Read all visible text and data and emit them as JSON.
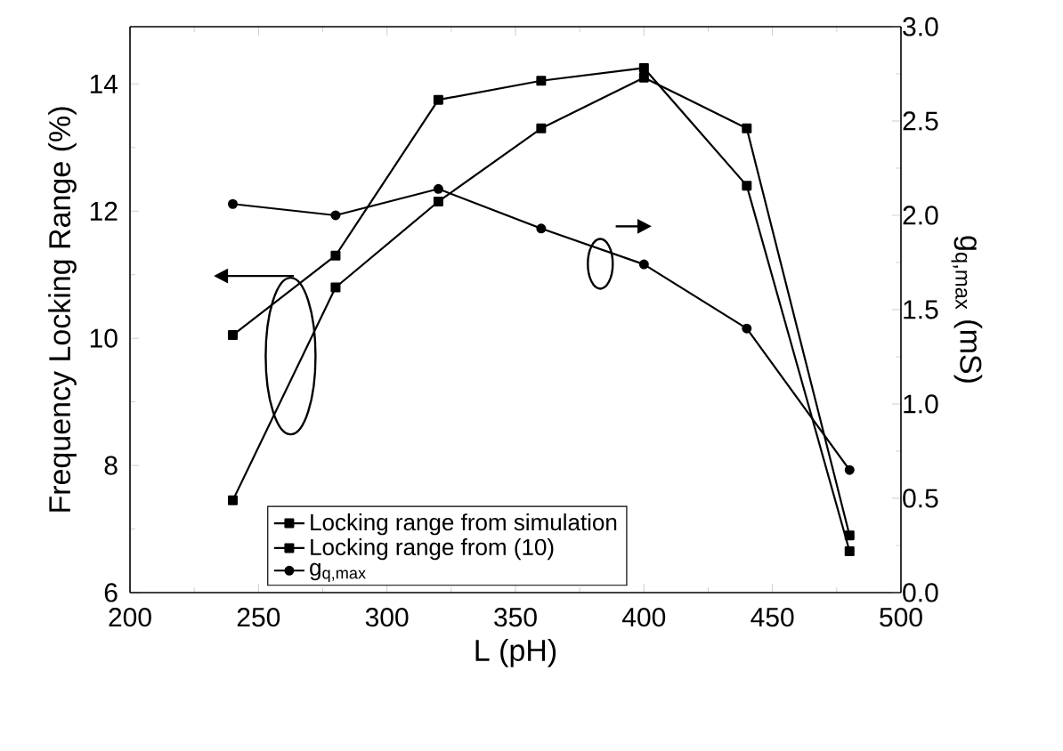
{
  "chart_data": {
    "type": "line",
    "xlabel": "L (pH)",
    "ylabel": "Frequency Locking Range (%)",
    "y2label": "g$_{q,max}$ (mS)",
    "x": [
      240,
      280,
      320,
      360,
      400,
      440,
      480
    ],
    "series": [
      {
        "name": "Locking range from simulation",
        "color": "#000000",
        "marker": "square",
        "values": [
          7.45,
          10.8,
          12.15,
          13.3,
          14.1,
          13.3,
          6.9
        ]
      },
      {
        "name": "Locking range from (10)",
        "color": "#000000",
        "marker": "square",
        "values": [
          10.05,
          11.3,
          13.75,
          14.05,
          14.25,
          12.4,
          6.65
        ]
      },
      {
        "name": "g$_{q,max}$",
        "color": "#000000",
        "marker": "circle",
        "axis": "y2",
        "values": [
          2.06,
          2.0,
          2.14,
          1.93,
          1.74,
          1.4,
          0.65
        ]
      }
    ],
    "xlim": [
      200,
      500
    ],
    "xticks": [
      200,
      250,
      300,
      350,
      400,
      450,
      500
    ],
    "ylim": [
      6,
      14.9
    ],
    "yticks": [
      6,
      8,
      10,
      12,
      14
    ],
    "y2lim": [
      0,
      3
    ],
    "y2ticks": [
      {
        "value": 0,
        "label": "0.0"
      },
      {
        "value": 0.5,
        "label": "0.5"
      },
      {
        "value": 1,
        "label": "1.0"
      },
      {
        "value": 1.5,
        "label": "1.5"
      },
      {
        "value": 2,
        "label": "2.0"
      },
      {
        "value": 2.5,
        "label": "2.5"
      },
      {
        "value": 3,
        "label": "3.0"
      }
    ],
    "legend": "bottom",
    "line_style": "solid",
    "grid": false
  }
}
